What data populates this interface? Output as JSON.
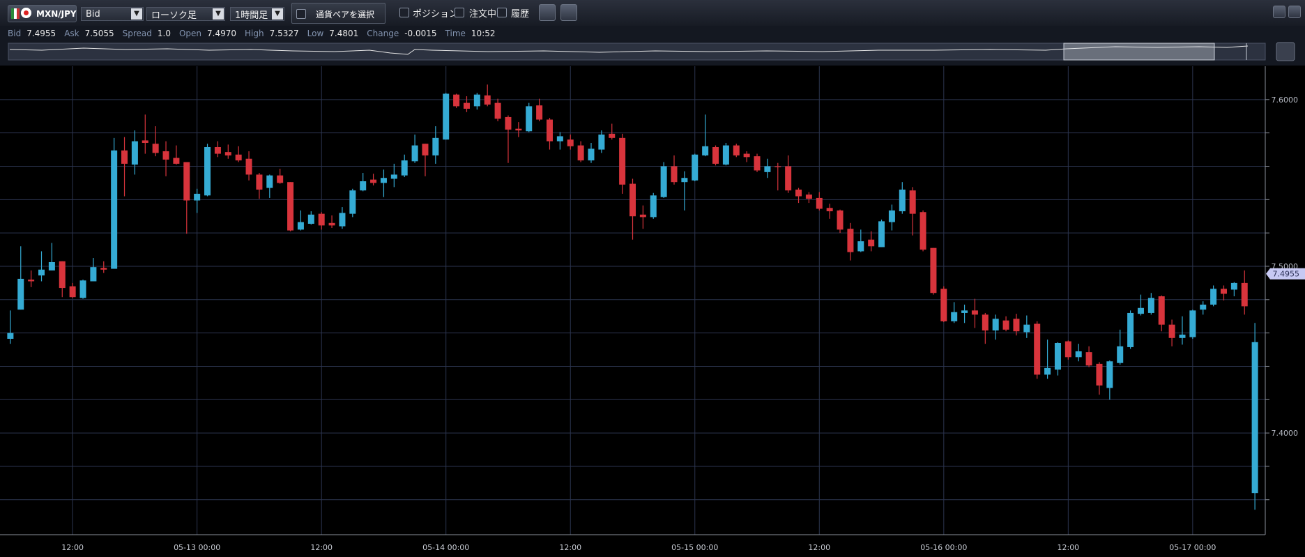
{
  "toolbar": {
    "pair": "MXN/JPY",
    "price_type": "Bid",
    "chart_type": "ローソク足",
    "timeframe": "1時間足",
    "select_pair": "通貨ペアを選択",
    "checkboxes": [
      "ポジション",
      "注文中",
      "履歴"
    ]
  },
  "quote": [
    {
      "label": "Bid",
      "value": "7.4955"
    },
    {
      "label": "Ask",
      "value": "7.5055"
    },
    {
      "label": "Spread",
      "value": "1.0"
    },
    {
      "label": "Open",
      "value": "7.4970"
    },
    {
      "label": "High",
      "value": "7.5327"
    },
    {
      "label": "Low",
      "value": "7.4801"
    },
    {
      "label": "Change",
      "value": "-0.0015"
    },
    {
      "label": "Time",
      "value": "10:52"
    }
  ],
  "chart_data": {
    "type": "candlestick",
    "up_color": "#35abd4",
    "down_color": "#d8343c",
    "grid": true,
    "xlim": [
      -1,
      121
    ],
    "xticks": [
      {
        "value": 6,
        "label": "12:00"
      },
      {
        "value": 18,
        "label": "05-13 00:00"
      },
      {
        "value": 30,
        "label": "12:00"
      },
      {
        "value": 42,
        "label": "05-14 00:00"
      },
      {
        "value": 54,
        "label": "12:00"
      },
      {
        "value": 66,
        "label": "05-15 00:00"
      },
      {
        "value": 78,
        "label": "12:00"
      },
      {
        "value": 90,
        "label": "05-16 00:00"
      },
      {
        "value": 102,
        "label": "12:00"
      },
      {
        "value": 114,
        "label": "05-17 00:00"
      }
    ],
    "ylim": [
      7.339,
      7.62
    ],
    "yticks": [
      {
        "value": 7.6,
        "label": "7.6000"
      },
      {
        "value": 7.5,
        "label": "7.5000"
      },
      {
        "value": 7.4,
        "label": "7.4000"
      }
    ],
    "y_gridlines": [
      7.6,
      7.58,
      7.56,
      7.54,
      7.52,
      7.5,
      7.48,
      7.46,
      7.44,
      7.42,
      7.4,
      7.38,
      7.36
    ],
    "current_price": 7.4955,
    "ohlc": [
      [
        7.4565,
        7.4735,
        7.4535,
        7.46
      ],
      [
        7.474,
        7.512,
        7.474,
        7.4925
      ],
      [
        7.492,
        7.4975,
        7.4875,
        7.491
      ],
      [
        7.4945,
        7.509,
        7.491,
        7.498
      ],
      [
        7.4975,
        7.514,
        7.4975,
        7.5025
      ],
      [
        7.503,
        7.503,
        7.4815,
        7.487
      ],
      [
        7.488,
        7.49,
        7.481,
        7.4815
      ],
      [
        7.481,
        7.492,
        7.4805,
        7.4915
      ],
      [
        7.491,
        7.505,
        7.491,
        7.4995
      ],
      [
        7.499,
        7.503,
        7.496,
        7.498
      ],
      [
        7.4985,
        7.577,
        7.4985,
        7.5695
      ],
      [
        7.5695,
        7.5775,
        7.542,
        7.5615
      ],
      [
        7.561,
        7.5815,
        7.555,
        7.575
      ],
      [
        7.5755,
        7.591,
        7.5675,
        7.574
      ],
      [
        7.5735,
        7.584,
        7.566,
        7.568
      ],
      [
        7.569,
        7.575,
        7.554,
        7.564
      ],
      [
        7.565,
        7.5725,
        7.561,
        7.5615
      ],
      [
        7.5625,
        7.5625,
        7.5195,
        7.5395
      ],
      [
        7.5395,
        7.5465,
        7.532,
        7.5435
      ],
      [
        7.5425,
        7.5735,
        7.542,
        7.5715
      ],
      [
        7.5715,
        7.575,
        7.5655,
        7.5675
      ],
      [
        7.5685,
        7.573,
        7.5645,
        7.5665
      ],
      [
        7.567,
        7.572,
        7.5625,
        7.5635
      ],
      [
        7.5645,
        7.569,
        7.5515,
        7.555
      ],
      [
        7.555,
        7.556,
        7.5405,
        7.546
      ],
      [
        7.547,
        7.555,
        7.541,
        7.5545
      ],
      [
        7.5545,
        7.5585,
        7.5495,
        7.55
      ],
      [
        7.5505,
        7.5505,
        7.521,
        7.5215
      ],
      [
        7.522,
        7.5335,
        7.5215,
        7.5265
      ],
      [
        7.5255,
        7.533,
        7.525,
        7.531
      ],
      [
        7.5315,
        7.5325,
        7.522,
        7.5245
      ],
      [
        7.526,
        7.5305,
        7.523,
        7.5245
      ],
      [
        7.524,
        7.5355,
        7.5225,
        7.532
      ],
      [
        7.5315,
        7.5465,
        7.5295,
        7.5455
      ],
      [
        7.5455,
        7.556,
        7.545,
        7.551
      ],
      [
        7.552,
        7.5555,
        7.5485,
        7.55
      ],
      [
        7.55,
        7.558,
        7.5415,
        7.553
      ],
      [
        7.5525,
        7.5615,
        7.5475,
        7.555
      ],
      [
        7.5545,
        7.567,
        7.5535,
        7.5635
      ],
      [
        7.563,
        7.579,
        7.562,
        7.5725
      ],
      [
        7.5735,
        7.5735,
        7.554,
        7.5665
      ],
      [
        7.5665,
        7.584,
        7.5615,
        7.577
      ],
      [
        7.576,
        7.604,
        7.576,
        7.6035
      ],
      [
        7.603,
        7.6035,
        7.595,
        7.596
      ],
      [
        7.598,
        7.602,
        7.5925,
        7.5945
      ],
      [
        7.596,
        7.604,
        7.594,
        7.603
      ],
      [
        7.6025,
        7.609,
        7.596,
        7.597
      ],
      [
        7.598,
        7.6005,
        7.587,
        7.5885
      ],
      [
        7.5895,
        7.5905,
        7.562,
        7.582
      ],
      [
        7.5825,
        7.5865,
        7.5775,
        7.5815
      ],
      [
        7.581,
        7.598,
        7.5805,
        7.596
      ],
      [
        7.5965,
        7.6005,
        7.587,
        7.588
      ],
      [
        7.588,
        7.589,
        7.57,
        7.575
      ],
      [
        7.575,
        7.5805,
        7.57,
        7.578
      ],
      [
        7.576,
        7.579,
        7.57,
        7.572
      ],
      [
        7.5725,
        7.575,
        7.5625,
        7.5635
      ],
      [
        7.5635,
        7.574,
        7.562,
        7.5705
      ],
      [
        7.57,
        7.5815,
        7.568,
        7.579
      ],
      [
        7.5795,
        7.5855,
        7.576,
        7.577
      ],
      [
        7.577,
        7.5795,
        7.5435,
        7.549
      ],
      [
        7.5495,
        7.5525,
        7.516,
        7.53
      ],
      [
        7.531,
        7.5365,
        7.5225,
        7.5295
      ],
      [
        7.5295,
        7.544,
        7.5285,
        7.5425
      ],
      [
        7.5415,
        7.5625,
        7.541,
        7.56
      ],
      [
        7.56,
        7.5665,
        7.549,
        7.5505
      ],
      [
        7.5505,
        7.557,
        7.5335,
        7.553
      ],
      [
        7.5515,
        7.5675,
        7.551,
        7.567
      ],
      [
        7.5665,
        7.591,
        7.566,
        7.572
      ],
      [
        7.5715,
        7.5725,
        7.5605,
        7.5615
      ],
      [
        7.561,
        7.574,
        7.5605,
        7.5725
      ],
      [
        7.5725,
        7.5735,
        7.5655,
        7.5665
      ],
      [
        7.5675,
        7.569,
        7.5625,
        7.5655
      ],
      [
        7.566,
        7.5675,
        7.5565,
        7.5575
      ],
      [
        7.5565,
        7.5645,
        7.553,
        7.56
      ],
      [
        7.56,
        7.562,
        7.5455,
        7.5595
      ],
      [
        7.56,
        7.5665,
        7.544,
        7.5455
      ],
      [
        7.546,
        7.547,
        7.538,
        7.542
      ],
      [
        7.543,
        7.5445,
        7.538,
        7.5405
      ],
      [
        7.541,
        7.5445,
        7.5335,
        7.5345
      ],
      [
        7.535,
        7.5375,
        7.5285,
        7.533
      ],
      [
        7.5335,
        7.534,
        7.52,
        7.522
      ],
      [
        7.5225,
        7.526,
        7.5035,
        7.5085
      ],
      [
        7.509,
        7.522,
        7.5085,
        7.515
      ],
      [
        7.516,
        7.521,
        7.509,
        7.512
      ],
      [
        7.5115,
        7.528,
        7.5115,
        7.527
      ],
      [
        7.5265,
        7.537,
        7.5215,
        7.5335
      ],
      [
        7.533,
        7.5505,
        7.5315,
        7.546
      ],
      [
        7.5455,
        7.5475,
        7.5185,
        7.5315
      ],
      [
        7.5325,
        7.5335,
        7.509,
        7.51
      ],
      [
        7.511,
        7.511,
        7.483,
        7.484
      ],
      [
        7.4865,
        7.488,
        7.4665,
        7.467
      ],
      [
        7.467,
        7.4785,
        7.466,
        7.4725
      ],
      [
        7.472,
        7.477,
        7.466,
        7.4735
      ],
      [
        7.4735,
        7.4805,
        7.463,
        7.471
      ],
      [
        7.471,
        7.472,
        7.4535,
        7.4615
      ],
      [
        7.4615,
        7.471,
        7.456,
        7.4685
      ],
      [
        7.4675,
        7.47,
        7.461,
        7.462
      ],
      [
        7.4685,
        7.4715,
        7.4585,
        7.461
      ],
      [
        7.4605,
        7.4705,
        7.457,
        7.465
      ],
      [
        7.4655,
        7.467,
        7.4325,
        7.435
      ],
      [
        7.435,
        7.456,
        7.4325,
        7.439
      ],
      [
        7.438,
        7.4545,
        7.4345,
        7.454
      ],
      [
        7.455,
        7.4555,
        7.444,
        7.4455
      ],
      [
        7.4455,
        7.4535,
        7.443,
        7.449
      ],
      [
        7.4485,
        7.452,
        7.4395,
        7.4405
      ],
      [
        7.4415,
        7.4425,
        7.423,
        7.4285
      ],
      [
        7.427,
        7.4435,
        7.42,
        7.443
      ],
      [
        7.442,
        7.462,
        7.441,
        7.452
      ],
      [
        7.4515,
        7.4735,
        7.4505,
        7.472
      ],
      [
        7.4715,
        7.483,
        7.4705,
        7.475
      ],
      [
        7.472,
        7.484,
        7.471,
        7.481
      ],
      [
        7.482,
        7.4825,
        7.461,
        7.465
      ],
      [
        7.465,
        7.468,
        7.452,
        7.457
      ],
      [
        7.457,
        7.47,
        7.453,
        7.459
      ],
      [
        7.4575,
        7.474,
        7.4565,
        7.4735
      ],
      [
        7.474,
        7.479,
        7.471,
        7.477
      ],
      [
        7.477,
        7.4885,
        7.476,
        7.4865
      ],
      [
        7.4865,
        7.4885,
        7.4795,
        7.4835
      ],
      [
        7.486,
        7.4905,
        7.482,
        7.49
      ],
      [
        7.49,
        7.4975,
        7.471,
        7.476
      ],
      [
        7.364,
        7.466,
        7.354,
        7.4545
      ]
    ]
  }
}
